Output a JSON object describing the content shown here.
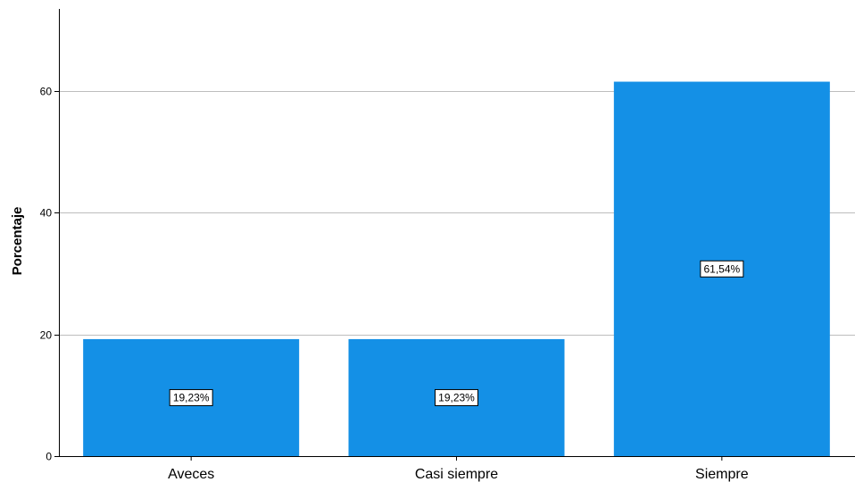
{
  "chart_data": {
    "type": "bar",
    "categories": [
      "Aveces",
      "Casi siempre",
      "Siempre"
    ],
    "values": [
      19.23,
      19.23,
      61.54
    ],
    "data_labels": [
      "19,23%",
      "19,23%",
      "61,54%"
    ],
    "title": "",
    "xlabel": "",
    "ylabel": "Porcentaje",
    "ylim": [
      0,
      73.5
    ],
    "yticks": [
      0,
      20,
      40,
      60
    ],
    "grid": true,
    "bar_color": "#1490e6",
    "grid_color": "#bdbdbd"
  }
}
